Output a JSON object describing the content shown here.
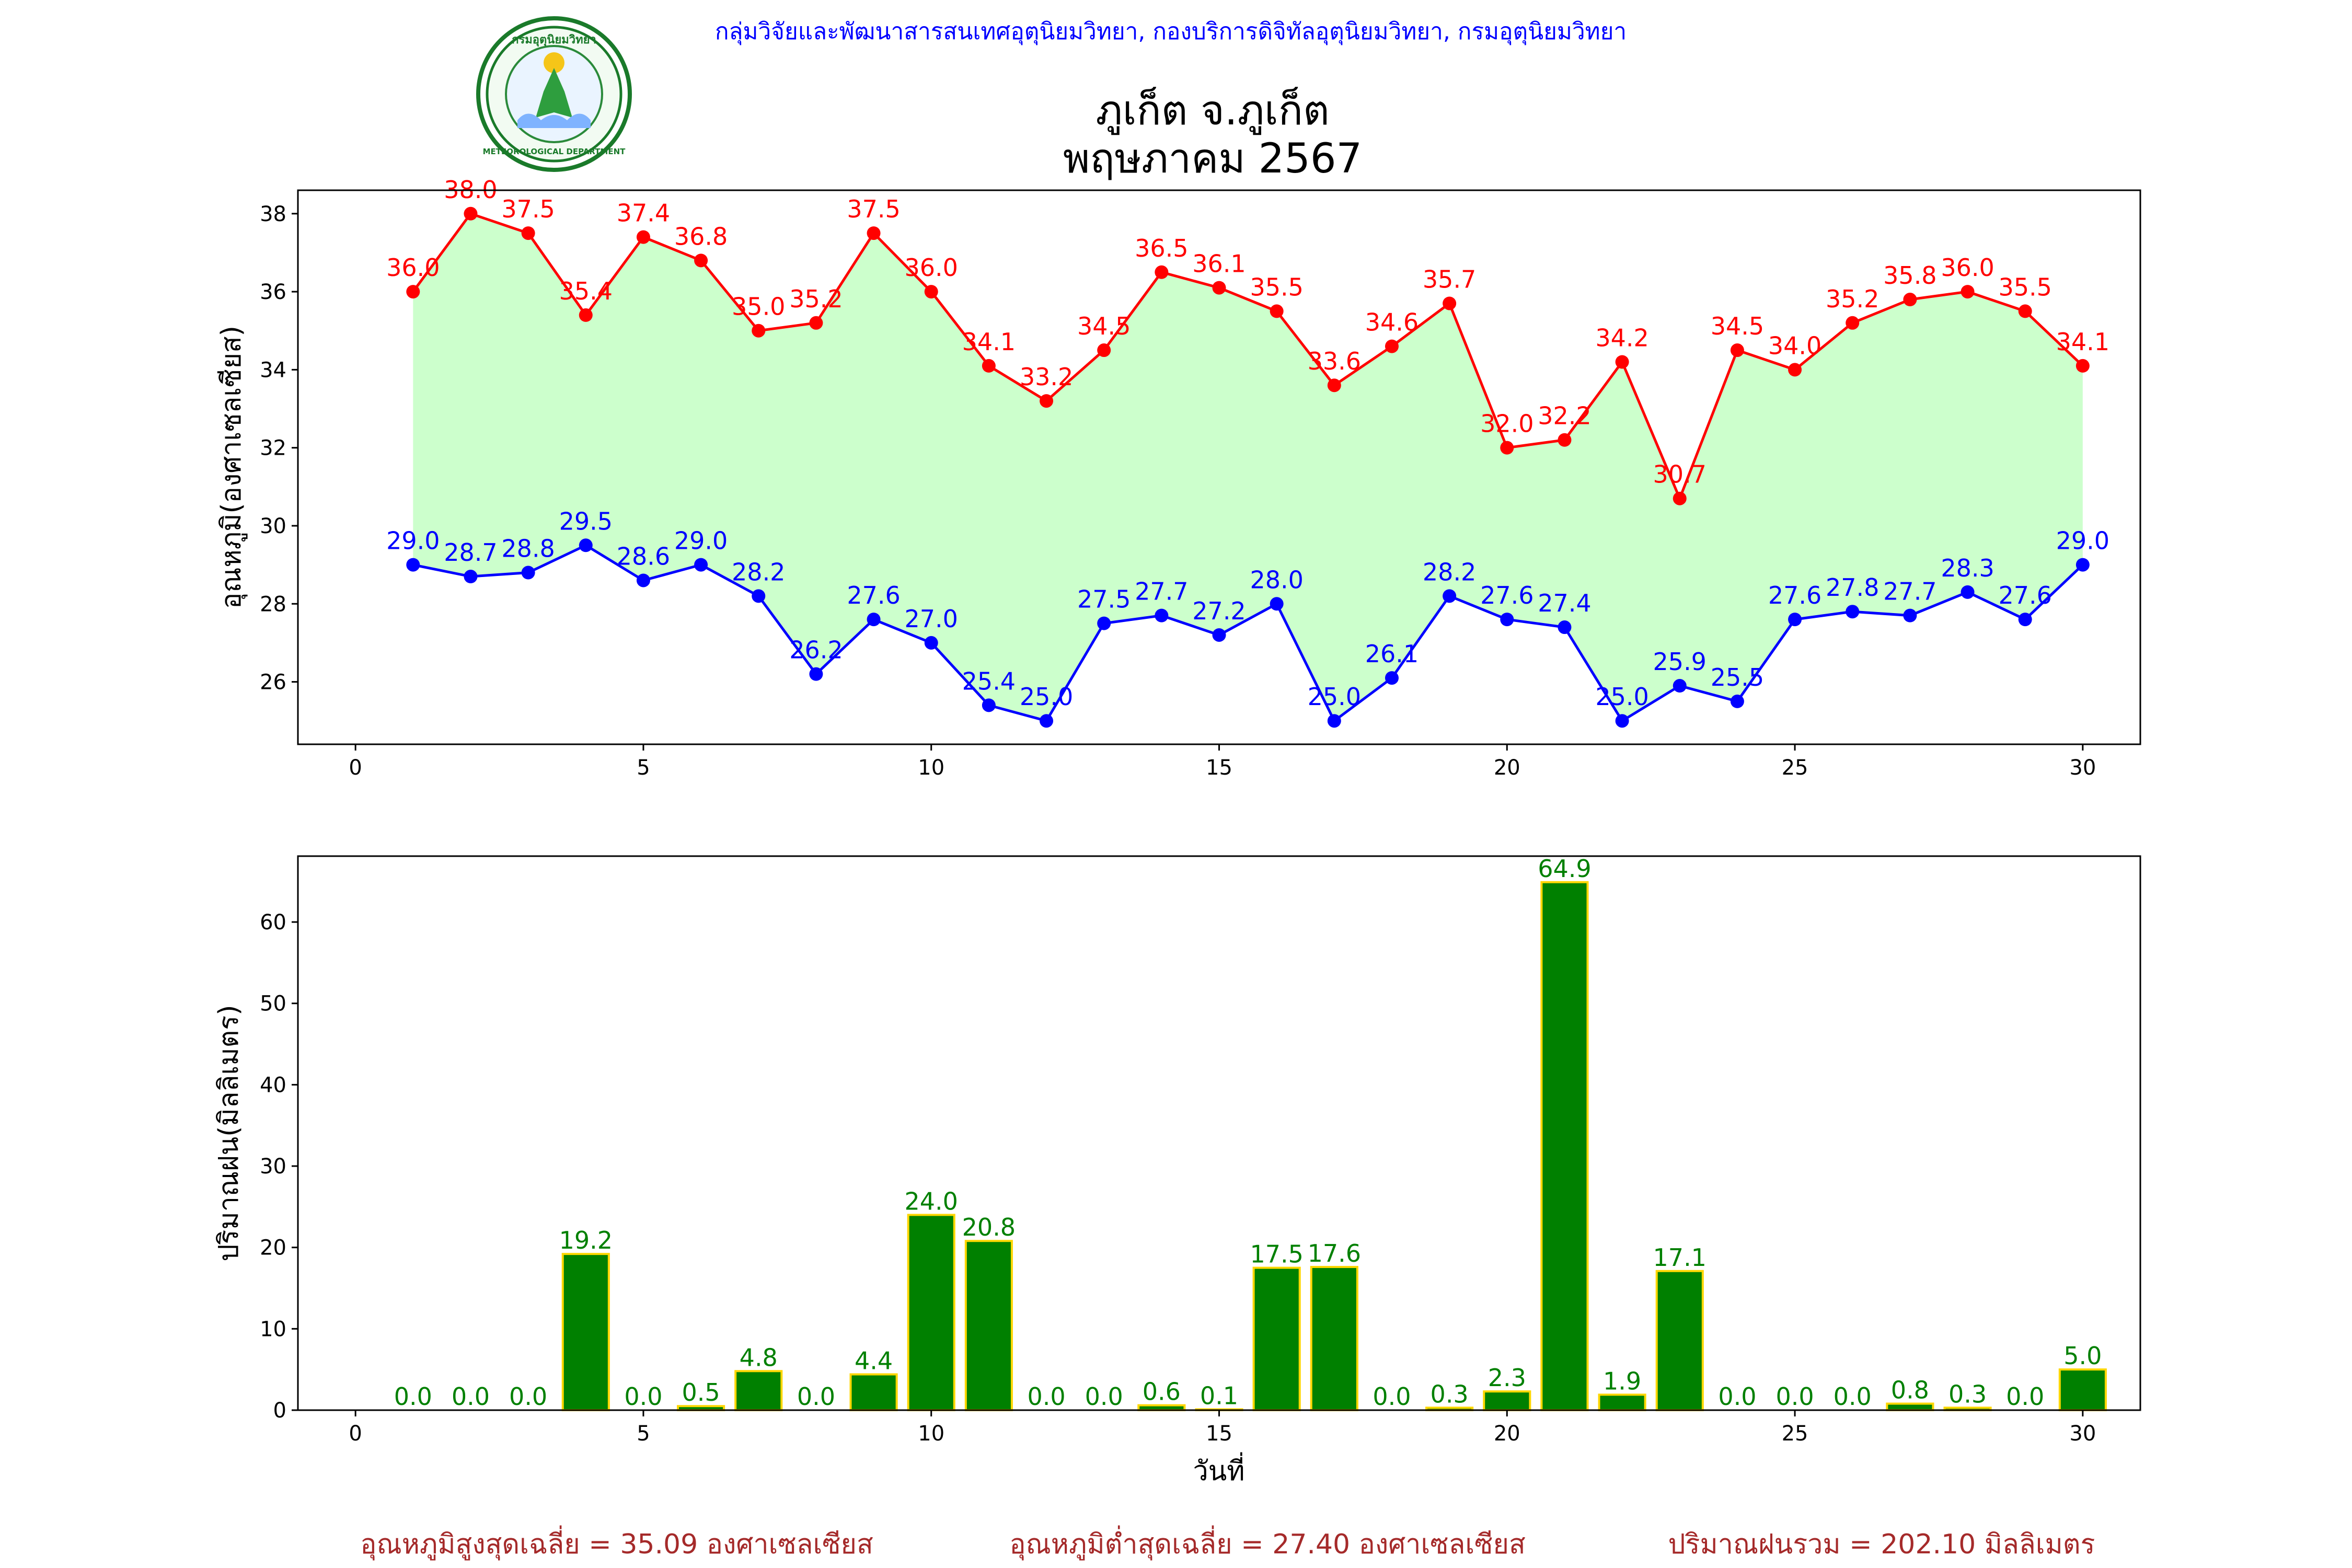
{
  "header": {
    "agency": "กลุ่มวิจัยและพัฒนาสารสนเทศอุตุนิยมวิทยา, กองบริการดิจิทัลอุตุนิยมวิทยา, กรมอุตุนิยมวิทยา",
    "title": "ภูเก็ต จ.ภูเก็ต",
    "subtitle": "พฤษภาคม 2567"
  },
  "logo": {
    "name": "meteorological-department-seal",
    "top_text": "กรมอุตุนิยมวิทยา",
    "bottom_text": "METEOROLOGICAL DEPARTMENT"
  },
  "colors": {
    "max_temp": "#ff0000",
    "min_temp": "#0000ff",
    "fill": "#ccffcc",
    "rain_bar": "#008000",
    "rain_edge": "#ffd700",
    "rain_label": "#008000",
    "agency_text": "#0000ff",
    "summary_text": "#a52a2a"
  },
  "chart_data": [
    {
      "type": "line",
      "ylabel": "อุณหภูมิ(องศาเซลเซียส)",
      "xlabel": "",
      "xlim": [
        -1,
        31
      ],
      "ylim": [
        24.4,
        38.6
      ],
      "x_ticks": [
        0,
        5,
        10,
        15,
        20,
        25,
        30
      ],
      "y_ticks": [
        26,
        28,
        30,
        32,
        34,
        36,
        38
      ],
      "grid": false,
      "x": [
        1,
        2,
        3,
        4,
        5,
        6,
        7,
        8,
        9,
        10,
        11,
        12,
        13,
        14,
        15,
        16,
        17,
        18,
        19,
        20,
        21,
        22,
        23,
        24,
        25,
        26,
        27,
        28,
        29,
        30
      ],
      "series": [
        {
          "key": "max",
          "values": [
            36.0,
            38.0,
            37.5,
            35.4,
            37.4,
            36.8,
            35.0,
            35.2,
            37.5,
            36.0,
            34.1,
            33.2,
            34.5,
            36.5,
            36.1,
            35.5,
            33.6,
            34.6,
            35.7,
            32.0,
            32.2,
            34.2,
            30.7,
            34.5,
            34.0,
            35.2,
            35.8,
            36.0,
            35.5,
            34.1
          ]
        },
        {
          "key": "min",
          "values": [
            29.0,
            28.7,
            28.8,
            29.5,
            28.6,
            29.0,
            28.2,
            26.2,
            27.6,
            27.0,
            25.4,
            25.0,
            27.5,
            27.7,
            27.2,
            28.0,
            25.0,
            26.1,
            28.2,
            27.6,
            27.4,
            25.0,
            25.9,
            25.5,
            27.6,
            27.8,
            27.7,
            28.3,
            27.6,
            29.0
          ]
        }
      ],
      "labels_max": [
        "36.0",
        "38.0",
        "37.5",
        "35.4",
        "37.4",
        "36.8",
        "35.0",
        "35.2",
        "37.5",
        "36.0",
        "34.1",
        "33.2",
        "34.5",
        "36.5",
        "36.1",
        "35.5",
        "33.6",
        "34.6",
        "35.7",
        "32.0",
        "32.2",
        "34.2",
        "30.7",
        "34.5",
        "34.0",
        "35.2",
        "35.8",
        "36.0",
        "35.5",
        "34.1"
      ],
      "labels_min": [
        "29.0",
        "28.7",
        "28.8",
        "29.5",
        "28.6",
        "29.0",
        "28.2",
        "26.2",
        "27.6",
        "27.0",
        "25.4",
        "25.0",
        "27.5",
        "27.7",
        "27.2",
        "28.0",
        "25.0",
        "26.1",
        "28.2",
        "27.6",
        "27.4",
        "25.0",
        "25.9",
        "25.5",
        "27.6",
        "27.8",
        "27.7",
        "28.3",
        "27.6",
        "29.0"
      ]
    },
    {
      "type": "bar",
      "ylabel": "ปริมาณฝน(มิลลิเมตร)",
      "xlabel": "วันที่",
      "xlim": [
        -1,
        31
      ],
      "ylim": [
        0,
        68.1
      ],
      "x_ticks": [
        0,
        5,
        10,
        15,
        20,
        25,
        30
      ],
      "y_ticks": [
        0,
        10,
        20,
        30,
        40,
        50,
        60
      ],
      "grid": false,
      "x": [
        1,
        2,
        3,
        4,
        5,
        6,
        7,
        8,
        9,
        10,
        11,
        12,
        13,
        14,
        15,
        16,
        17,
        18,
        19,
        20,
        21,
        22,
        23,
        24,
        25,
        26,
        27,
        28,
        29,
        30
      ],
      "values": [
        0.0,
        0.0,
        0.0,
        19.2,
        0.0,
        0.5,
        4.8,
        0.0,
        4.4,
        24.0,
        20.8,
        0.0,
        0.0,
        0.6,
        0.1,
        17.5,
        17.6,
        0.0,
        0.3,
        2.3,
        64.9,
        1.9,
        17.1,
        0.0,
        0.0,
        0.0,
        0.8,
        0.3,
        0.0,
        5.0
      ],
      "labels": [
        "0.0",
        "0.0",
        "0.0",
        "19.2",
        "0.0",
        "0.5",
        "4.8",
        "0.0",
        "4.4",
        "24.0",
        "20.8",
        "0.0",
        "0.0",
        "0.6",
        "0.1",
        "17.5",
        "17.6",
        "0.0",
        "0.3",
        "2.3",
        "64.9",
        "1.9",
        "17.1",
        "0.0",
        "0.0",
        "0.0",
        "0.8",
        "0.3",
        "0.0",
        "5.0"
      ]
    }
  ],
  "summary": {
    "avg_max": "อุณหภูมิสูงสุดเฉลี่ย = 35.09 องศาเซลเซียส",
    "avg_min": "อุณหภูมิต่ำสุดเฉลี่ย = 27.40 องศาเซลเซียส",
    "total_rain": "ปริมาณฝนรวม = 202.10 มิลลิเมตร"
  }
}
